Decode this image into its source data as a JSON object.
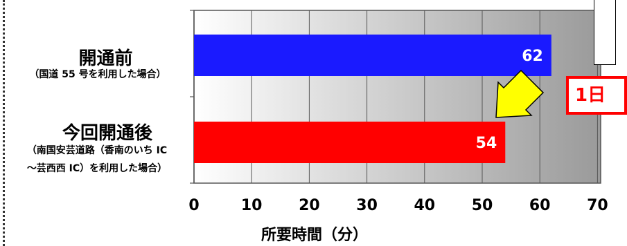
{
  "chart_data": {
    "type": "bar",
    "orientation": "horizontal",
    "categories": [
      {
        "main": "開通前",
        "sub_lines": [
          "（国道 55 号を利用した場合）"
        ]
      },
      {
        "main": "今回開通後",
        "sub_lines": [
          "（南国安芸道路（香南のいち IC",
          "～芸西西 IC）を利用した場合）"
        ]
      }
    ],
    "values": [
      62,
      54
    ],
    "bar_colors": [
      "#1a1aff",
      "#ff0000"
    ],
    "value_labels": [
      "62",
      "54"
    ],
    "xlim": [
      0,
      70
    ],
    "xticks": [
      "0",
      "10",
      "20",
      "30",
      "40",
      "50",
      "60",
      "70"
    ],
    "xlabel": "所要時間（分）",
    "grid": true
  },
  "callout": {
    "text": "1日"
  },
  "arrow_color": "#ffff00"
}
